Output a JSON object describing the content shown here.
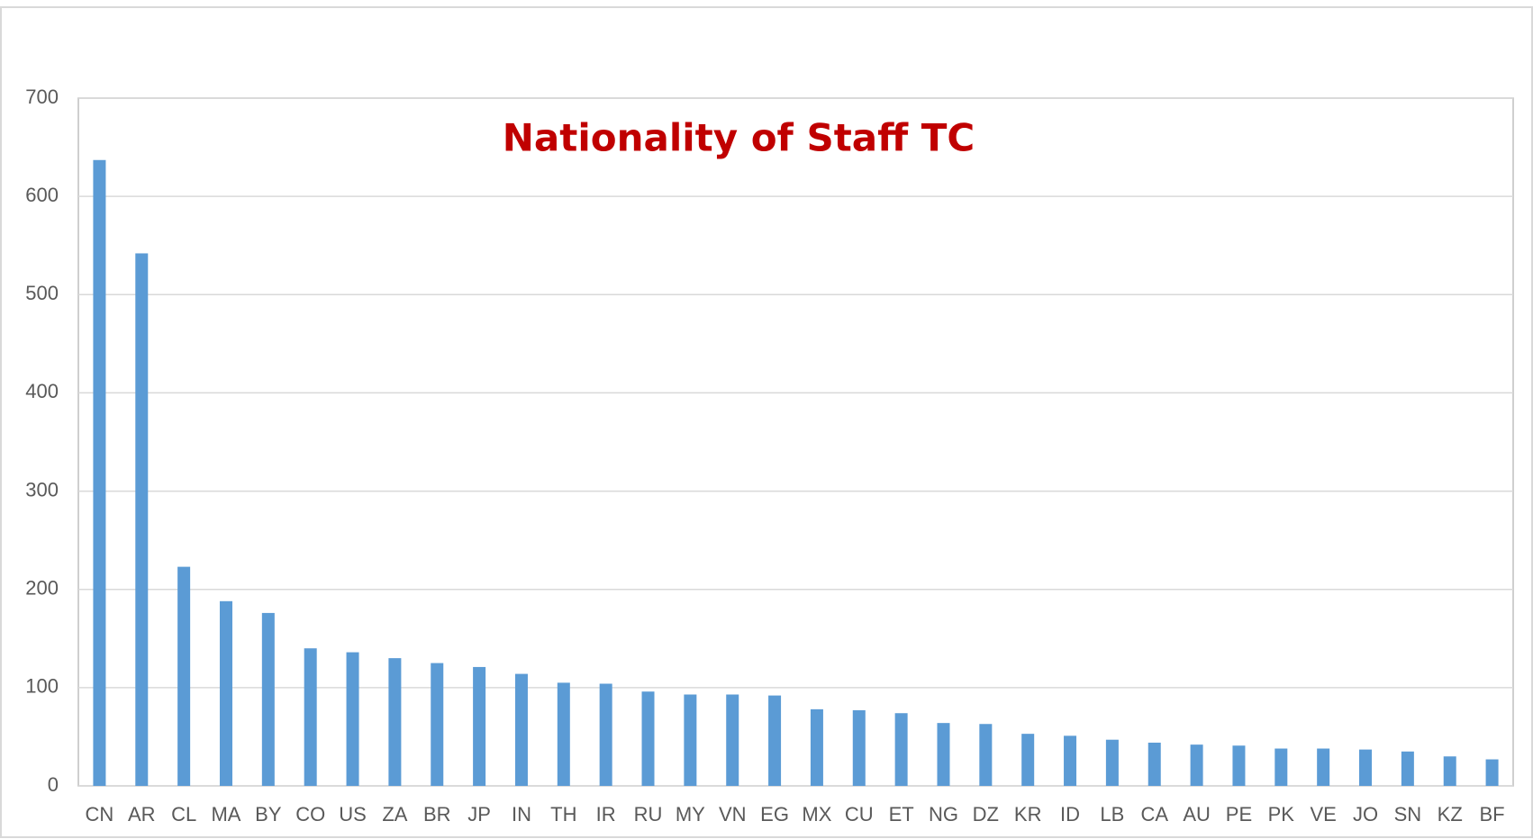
{
  "chart_data": {
    "type": "bar",
    "title": "Nationality of Staff TC",
    "categories": [
      "CN",
      "AR",
      "CL",
      "MA",
      "BY",
      "CO",
      "US",
      "ZA",
      "BR",
      "JP",
      "IN",
      "TH",
      "IR",
      "RU",
      "MY",
      "VN",
      "EG",
      "MX",
      "CU",
      "ET",
      "NG",
      "DZ",
      "KR",
      "ID",
      "LB",
      "CA",
      "AU",
      "PE",
      "PK",
      "VE",
      "JO",
      "SN",
      "KZ",
      "BF"
    ],
    "values": [
      637,
      542,
      223,
      188,
      176,
      140,
      136,
      130,
      125,
      121,
      114,
      105,
      104,
      96,
      93,
      93,
      92,
      78,
      77,
      74,
      64,
      63,
      53,
      51,
      47,
      44,
      42,
      41,
      38,
      38,
      37,
      35,
      30,
      27
    ],
    "color": "#5b9bd5",
    "ylim": [
      0,
      700
    ],
    "yticks": [
      0,
      100,
      200,
      300,
      400,
      500,
      600,
      700
    ],
    "grid": true
  }
}
